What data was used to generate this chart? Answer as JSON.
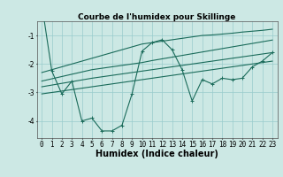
{
  "title": "Courbe de l'humidex pour Skillinge",
  "xlabel": "Humidex (Indice chaleur)",
  "bg_color": "#cce8e4",
  "line_color": "#1a6b5a",
  "grid_color": "#99cccc",
  "x": [
    0,
    1,
    2,
    3,
    4,
    5,
    6,
    7,
    8,
    9,
    10,
    11,
    12,
    13,
    14,
    15,
    16,
    17,
    18,
    19,
    20,
    21,
    22,
    23
  ],
  "y_data": [
    0.1,
    -2.25,
    -3.05,
    -2.6,
    -4.0,
    -3.9,
    -4.35,
    -4.35,
    -4.15,
    -3.05,
    -1.55,
    -1.25,
    -1.15,
    -1.5,
    -2.2,
    -3.3,
    -2.55,
    -2.7,
    -2.5,
    -2.55,
    -2.5,
    -2.1,
    -1.9,
    -1.6
  ],
  "y_reg1": [
    -2.3,
    -2.2,
    -2.1,
    -2.0,
    -1.9,
    -1.8,
    -1.7,
    -1.6,
    -1.5,
    -1.4,
    -1.3,
    -1.25,
    -1.2,
    -1.15,
    -1.1,
    -1.05,
    -1.0,
    -0.98,
    -0.95,
    -0.92,
    -0.88,
    -0.85,
    -0.82,
    -0.78
  ],
  "y_reg2": [
    -2.6,
    -2.52,
    -2.44,
    -2.36,
    -2.28,
    -2.2,
    -2.15,
    -2.1,
    -2.05,
    -2.0,
    -1.95,
    -1.88,
    -1.82,
    -1.76,
    -1.7,
    -1.64,
    -1.58,
    -1.52,
    -1.46,
    -1.4,
    -1.34,
    -1.28,
    -1.22,
    -1.16
  ],
  "y_reg3": [
    -2.8,
    -2.74,
    -2.68,
    -2.62,
    -2.56,
    -2.5,
    -2.45,
    -2.4,
    -2.35,
    -2.3,
    -2.25,
    -2.2,
    -2.15,
    -2.1,
    -2.05,
    -2.0,
    -1.95,
    -1.9,
    -1.85,
    -1.8,
    -1.75,
    -1.7,
    -1.65,
    -1.6
  ],
  "y_reg4": [
    -3.05,
    -3.0,
    -2.95,
    -2.9,
    -2.85,
    -2.8,
    -2.75,
    -2.7,
    -2.65,
    -2.6,
    -2.55,
    -2.5,
    -2.45,
    -2.4,
    -2.35,
    -2.3,
    -2.25,
    -2.2,
    -2.15,
    -2.1,
    -2.05,
    -2.0,
    -1.95,
    -1.9
  ],
  "ylim": [
    -4.6,
    -0.5
  ],
  "xlim": [
    -0.5,
    23.5
  ],
  "title_fontsize": 6.5,
  "label_fontsize": 7,
  "tick_fontsize": 5.5
}
